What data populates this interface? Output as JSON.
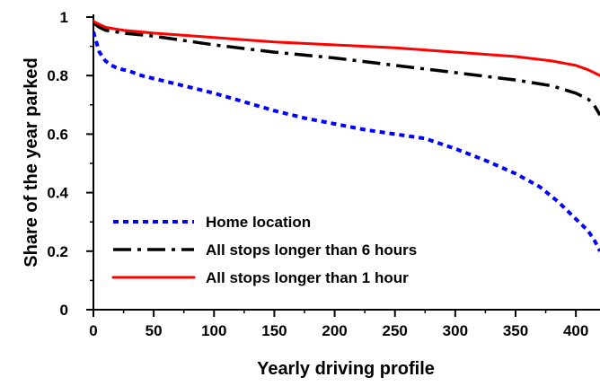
{
  "chart_data": {
    "type": "line",
    "title": "",
    "xlabel": "Yearly driving profile",
    "ylabel": "Share of the year parked",
    "xlim": [
      0,
      420
    ],
    "ylim": [
      0,
      1
    ],
    "x_ticks": [
      0,
      50,
      100,
      150,
      200,
      250,
      300,
      350,
      400
    ],
    "y_ticks": [
      0,
      0.2,
      0.4,
      0.6,
      0.8,
      1
    ],
    "y_tick_labels": [
      "0",
      "0.2",
      "0.4",
      "0.6",
      "0.8",
      "1"
    ],
    "grid": false,
    "legend_position": "bottom-left",
    "series": [
      {
        "name": "Home location",
        "color": "#0000ff",
        "dash": "dotted",
        "x": [
          0,
          2,
          5,
          10,
          15,
          20,
          30,
          40,
          50,
          75,
          100,
          125,
          150,
          175,
          200,
          225,
          250,
          275,
          300,
          325,
          350,
          370,
          385,
          400,
          410,
          415,
          420
        ],
        "y": [
          0.95,
          0.92,
          0.88,
          0.85,
          0.835,
          0.825,
          0.815,
          0.8,
          0.79,
          0.765,
          0.74,
          0.71,
          0.68,
          0.655,
          0.635,
          0.615,
          0.6,
          0.585,
          0.55,
          0.51,
          0.465,
          0.42,
          0.37,
          0.31,
          0.27,
          0.24,
          0.2
        ]
      },
      {
        "name": "All stops longer than 6 hours",
        "color": "#000000",
        "dash": "dash-dot",
        "x": [
          0,
          5,
          10,
          25,
          50,
          100,
          150,
          200,
          250,
          300,
          350,
          380,
          400,
          410,
          415,
          420
        ],
        "y": [
          0.98,
          0.965,
          0.955,
          0.945,
          0.935,
          0.905,
          0.88,
          0.86,
          0.835,
          0.81,
          0.785,
          0.765,
          0.74,
          0.72,
          0.7,
          0.665
        ]
      },
      {
        "name": "All stops longer than 1 hour",
        "color": "#ff0000",
        "dash": "solid",
        "x": [
          0,
          5,
          10,
          25,
          50,
          100,
          150,
          200,
          250,
          300,
          350,
          380,
          400,
          410,
          415,
          420
        ],
        "y": [
          0.985,
          0.975,
          0.965,
          0.955,
          0.945,
          0.93,
          0.915,
          0.905,
          0.895,
          0.88,
          0.865,
          0.85,
          0.835,
          0.82,
          0.81,
          0.8
        ]
      }
    ]
  }
}
